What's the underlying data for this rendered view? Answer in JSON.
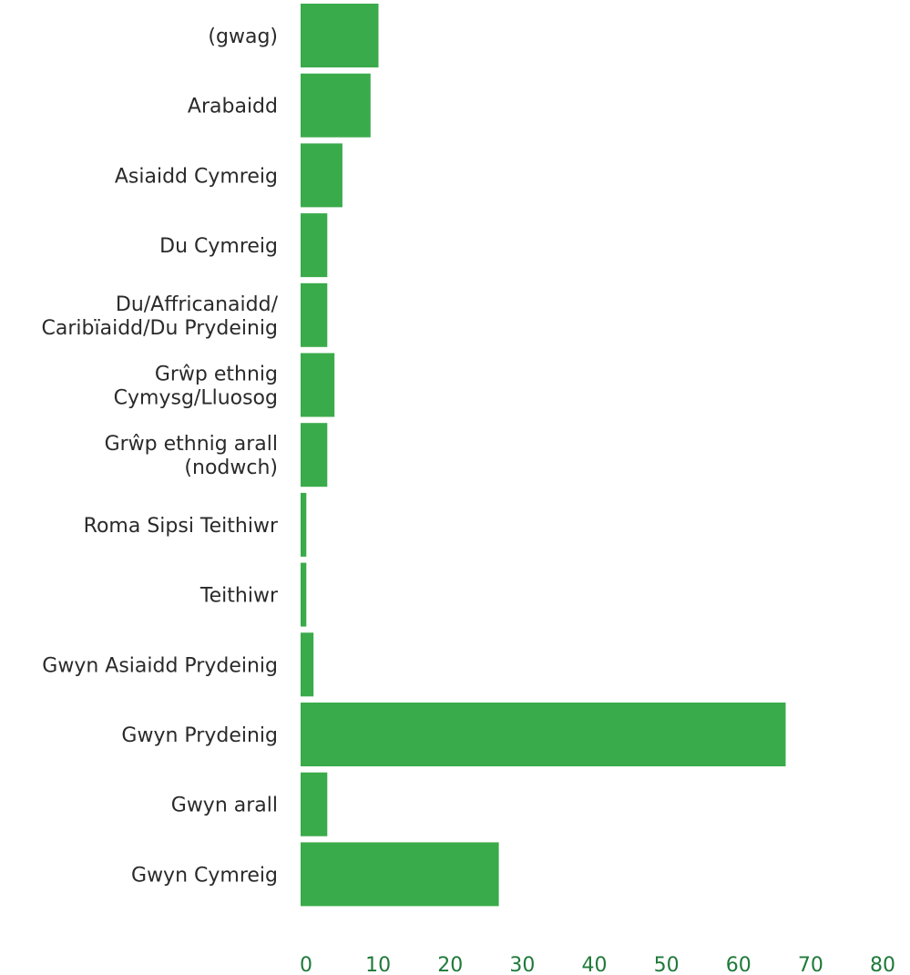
{
  "chart_data": {
    "type": "bar",
    "orientation": "horizontal",
    "categories": [
      [
        "(gwag)"
      ],
      [
        "Arabaidd"
      ],
      [
        "Asiaidd Cymreig"
      ],
      [
        "Du Cymreig"
      ],
      [
        "Du/Affricanaidd/",
        "Caribïaidd/Du Prydeinig"
      ],
      [
        "Grŵp ethnig",
        "Cymysg/Lluosog"
      ],
      [
        "Grŵp ethnig arall",
        "(nodwch)"
      ],
      [
        "Roma Sipsi Teithiwr"
      ],
      [
        "Teithiwr"
      ],
      [
        "Gwyn Asiaidd Prydeinig"
      ],
      [
        "Gwyn Prydeinig"
      ],
      [
        "Gwyn arall"
      ],
      [
        "Gwyn Cymreig"
      ]
    ],
    "values": [
      10.8,
      9.7,
      5.8,
      3.7,
      3.7,
      4.7,
      3.7,
      0.8,
      0.8,
      1.8,
      67.3,
      3.7,
      27.5
    ],
    "xlim": [
      0,
      80
    ],
    "xticks": [
      0,
      10,
      20,
      30,
      40,
      50,
      60,
      70,
      80
    ],
    "title": "",
    "xlabel": "",
    "ylabel": "",
    "grid": false,
    "legend": "none",
    "colors": {
      "bar": "#3aab4a",
      "tick_text": "#1f7a3a",
      "label_text": "#2a2a2a"
    }
  }
}
